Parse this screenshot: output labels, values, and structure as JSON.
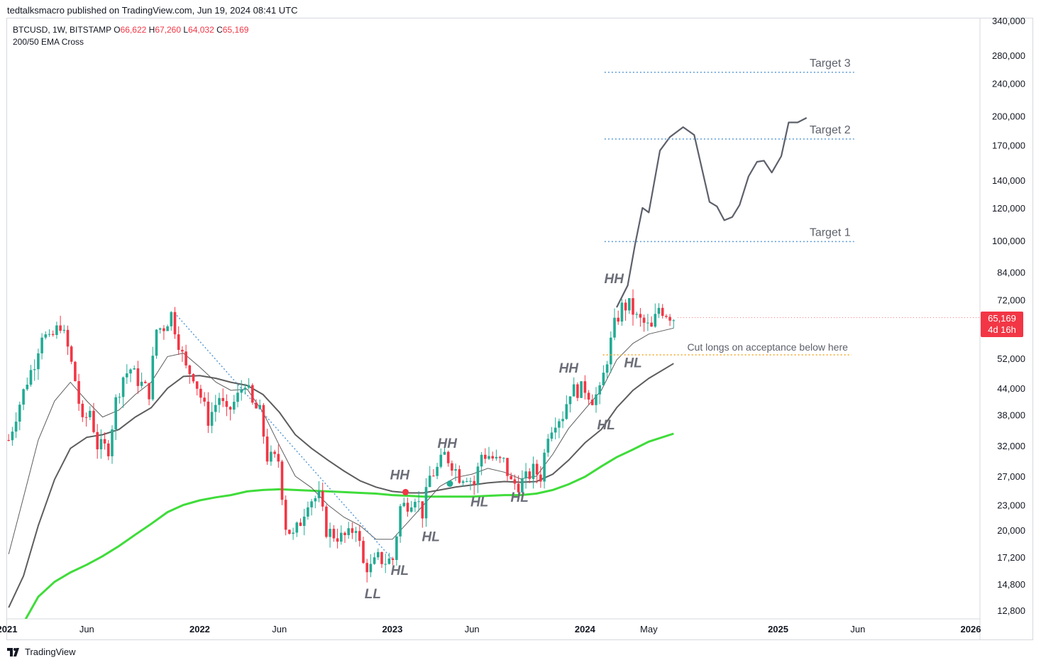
{
  "header": {
    "published": "tedtalksmacro published on TradingView.com, Jun 19, 2024 08:41 UTC"
  },
  "legend": {
    "symbol": "BTCUSD, 1W, BITSTAMP",
    "open_label": "O",
    "open": "66,622",
    "high_label": "H",
    "high": "67,260",
    "low_label": "L",
    "low": "64,032",
    "close_label": "C",
    "close": "65,169",
    "indicator": "200/50 EMA Cross"
  },
  "price_tag": {
    "price": "65,169",
    "countdown": "4d 16h"
  },
  "footer": {
    "brand": "TradingView"
  },
  "colors": {
    "up": "#22ab94",
    "down": "#f23645",
    "ema200": "#3fdc3a",
    "ema": "#5d5d5d",
    "target_line": "#5b9bd5",
    "cut_line": "#f5a623",
    "annotation": "#6b6e78",
    "projection": "#5d606b"
  },
  "chart_data": {
    "type": "candlestick",
    "y_scale": "log",
    "ylim": [
      11800,
      365000
    ],
    "y_ticks": [
      12800,
      14800,
      17200,
      20000,
      23000,
      27000,
      32000,
      38000,
      44000,
      52000,
      72000,
      84000,
      100000,
      120000,
      140000,
      170000,
      200000,
      240000,
      280000,
      340000
    ],
    "y_tick_labels": [
      "12,800",
      "14,800",
      "17,200",
      "20,000",
      "23,000",
      "27,000",
      "32,000",
      "38,000",
      "44,000",
      "52,000",
      "72,000",
      "84,000",
      "100,000",
      "120,000",
      "140,000",
      "170,000",
      "200,000",
      "240,000",
      "280,000",
      "340,000"
    ],
    "x_ticks": [
      {
        "date": "2021-01-01",
        "label": "2021",
        "bold": true
      },
      {
        "date": "2021-06-01",
        "label": "Jun",
        "bold": false
      },
      {
        "date": "2022-01-01",
        "label": "2022",
        "bold": true
      },
      {
        "date": "2022-06-01",
        "label": "Jun",
        "bold": false
      },
      {
        "date": "2023-01-01",
        "label": "2023",
        "bold": true
      },
      {
        "date": "2023-06-01",
        "label": "Jun",
        "bold": false
      },
      {
        "date": "2024-01-01",
        "label": "2024",
        "bold": true
      },
      {
        "date": "2024-05-01",
        "label": "May",
        "bold": false
      },
      {
        "date": "2025-01-01",
        "label": "2025",
        "bold": true
      },
      {
        "date": "2025-06-01",
        "label": "Jun",
        "bold": false
      },
      {
        "date": "2026-01-01",
        "label": "2026",
        "bold": true
      }
    ],
    "close_path": [
      [
        "2021-01-04",
        33000
      ],
      [
        "2021-01-18",
        38000
      ],
      [
        "2021-02-08",
        46000
      ],
      [
        "2021-02-22",
        51000
      ],
      [
        "2021-03-08",
        60000
      ],
      [
        "2021-03-22",
        57000
      ],
      [
        "2021-04-12",
        63000
      ],
      [
        "2021-04-26",
        55000
      ],
      [
        "2021-05-10",
        46000
      ],
      [
        "2021-05-24",
        36000
      ],
      [
        "2021-06-07",
        39000
      ],
      [
        "2021-06-21",
        32000
      ],
      [
        "2021-07-12",
        31500
      ],
      [
        "2021-07-26",
        41000
      ],
      [
        "2021-08-09",
        47000
      ],
      [
        "2021-08-23",
        49000
      ],
      [
        "2021-09-06",
        46000
      ],
      [
        "2021-09-27",
        43000
      ],
      [
        "2021-10-11",
        61000
      ],
      [
        "2021-10-25",
        62000
      ],
      [
        "2021-11-08",
        66500
      ],
      [
        "2021-11-22",
        57000
      ],
      [
        "2021-12-06",
        49000
      ],
      [
        "2021-12-20",
        47500
      ],
      [
        "2022-01-03",
        42000
      ],
      [
        "2022-01-17",
        37000
      ],
      [
        "2022-02-07",
        42000
      ],
      [
        "2022-02-21",
        38000
      ],
      [
        "2022-03-14",
        42000
      ],
      [
        "2022-03-28",
        46000
      ],
      [
        "2022-04-11",
        40000
      ],
      [
        "2022-04-25",
        38500
      ],
      [
        "2022-05-09",
        30000
      ],
      [
        "2022-05-30",
        29500
      ],
      [
        "2022-06-13",
        20500
      ],
      [
        "2022-06-27",
        19300
      ],
      [
        "2022-07-11",
        21000
      ],
      [
        "2022-07-25",
        23700
      ],
      [
        "2022-08-15",
        24000
      ],
      [
        "2022-08-29",
        20000
      ],
      [
        "2022-09-12",
        19500
      ],
      [
        "2022-09-26",
        19200
      ],
      [
        "2022-10-10",
        19400
      ],
      [
        "2022-10-24",
        20600
      ],
      [
        "2022-11-07",
        16500
      ],
      [
        "2022-11-21",
        16200
      ],
      [
        "2022-12-05",
        17100
      ],
      [
        "2022-12-19",
        16800
      ],
      [
        "2023-01-02",
        17000
      ],
      [
        "2023-01-16",
        22700
      ],
      [
        "2023-01-30",
        23200
      ],
      [
        "2023-02-13",
        24300
      ],
      [
        "2023-02-27",
        22000
      ],
      [
        "2023-03-13",
        26900
      ],
      [
        "2023-03-27",
        28100
      ],
      [
        "2023-04-10",
        30400
      ],
      [
        "2023-04-24",
        29000
      ],
      [
        "2023-05-08",
        27000
      ],
      [
        "2023-05-22",
        27200
      ],
      [
        "2023-06-05",
        25800
      ],
      [
        "2023-06-19",
        30500
      ],
      [
        "2023-07-03",
        30300
      ],
      [
        "2023-07-17",
        29300
      ],
      [
        "2023-07-31",
        29200
      ],
      [
        "2023-08-14",
        26000
      ],
      [
        "2023-08-28",
        25800
      ],
      [
        "2023-09-11",
        26600
      ],
      [
        "2023-09-25",
        27900
      ],
      [
        "2023-10-09",
        27000
      ],
      [
        "2023-10-23",
        34500
      ],
      [
        "2023-11-06",
        37000
      ],
      [
        "2023-11-20",
        38000
      ],
      [
        "2023-12-04",
        43500
      ],
      [
        "2023-12-18",
        43600
      ],
      [
        "2024-01-01",
        44000
      ],
      [
        "2024-01-15",
        41600
      ],
      [
        "2024-01-29",
        43000
      ],
      [
        "2024-02-12",
        52000
      ],
      [
        "2024-02-26",
        62500
      ],
      [
        "2024-03-11",
        69000
      ],
      [
        "2024-03-25",
        69800
      ],
      [
        "2024-04-08",
        65000
      ],
      [
        "2024-04-22",
        63000
      ],
      [
        "2024-05-06",
        61000
      ],
      [
        "2024-05-20",
        69000
      ],
      [
        "2024-06-03",
        67000
      ],
      [
        "2024-06-17",
        65169
      ]
    ],
    "ema50_path": [
      [
        "2021-01-04",
        13000
      ],
      [
        "2021-02-01",
        15500
      ],
      [
        "2021-03-01",
        20500
      ],
      [
        "2021-04-01",
        26500
      ],
      [
        "2021-05-01",
        31500
      ],
      [
        "2021-06-01",
        33500
      ],
      [
        "2021-07-01",
        34000
      ],
      [
        "2021-08-01",
        35000
      ],
      [
        "2021-09-01",
        37500
      ],
      [
        "2021-10-01",
        39500
      ],
      [
        "2021-11-01",
        44000
      ],
      [
        "2021-12-01",
        47000
      ],
      [
        "2022-01-01",
        47200
      ],
      [
        "2022-02-01",
        46500
      ],
      [
        "2022-03-01",
        45500
      ],
      [
        "2022-04-01",
        44700
      ],
      [
        "2022-05-01",
        42500
      ],
      [
        "2022-06-01",
        38500
      ],
      [
        "2022-07-01",
        34000
      ],
      [
        "2022-08-01",
        31500
      ],
      [
        "2022-09-01",
        29500
      ],
      [
        "2022-10-01",
        27800
      ],
      [
        "2022-11-01",
        26300
      ],
      [
        "2022-12-01",
        25400
      ],
      [
        "2023-01-01",
        24800
      ],
      [
        "2023-02-01",
        24600
      ],
      [
        "2023-03-01",
        24600
      ],
      [
        "2023-04-01",
        25000
      ],
      [
        "2023-05-01",
        25400
      ],
      [
        "2023-06-01",
        25700
      ],
      [
        "2023-07-01",
        26000
      ],
      [
        "2023-08-01",
        26200
      ],
      [
        "2023-09-01",
        26100
      ],
      [
        "2023-10-01",
        26200
      ],
      [
        "2023-11-01",
        27300
      ],
      [
        "2023-12-01",
        29500
      ],
      [
        "2024-01-01",
        32500
      ],
      [
        "2024-02-01",
        35000
      ],
      [
        "2024-03-01",
        39500
      ],
      [
        "2024-04-01",
        43500
      ],
      [
        "2024-05-01",
        46500
      ],
      [
        "2024-06-17",
        50500
      ]
    ],
    "ema21_path": [
      [
        "2021-01-04",
        17500
      ],
      [
        "2021-02-01",
        24000
      ],
      [
        "2021-03-01",
        33000
      ],
      [
        "2021-04-01",
        41000
      ],
      [
        "2021-05-01",
        45500
      ],
      [
        "2021-06-01",
        41000
      ],
      [
        "2021-07-01",
        37500
      ],
      [
        "2021-08-01",
        39000
      ],
      [
        "2021-09-01",
        42500
      ],
      [
        "2021-10-01",
        45500
      ],
      [
        "2021-11-01",
        52500
      ],
      [
        "2021-12-01",
        53500
      ],
      [
        "2022-01-01",
        49500
      ],
      [
        "2022-02-01",
        45500
      ],
      [
        "2022-03-01",
        43500
      ],
      [
        "2022-04-01",
        43800
      ],
      [
        "2022-05-01",
        38500
      ],
      [
        "2022-06-01",
        32000
      ],
      [
        "2022-07-01",
        27000
      ],
      [
        "2022-08-01",
        25300
      ],
      [
        "2022-09-01",
        23000
      ],
      [
        "2022-10-01",
        21500
      ],
      [
        "2022-11-01",
        20500
      ],
      [
        "2022-12-01",
        19000
      ],
      [
        "2023-01-01",
        19000
      ],
      [
        "2023-02-01",
        21000
      ],
      [
        "2023-03-01",
        23000
      ],
      [
        "2023-04-01",
        25500
      ],
      [
        "2023-05-01",
        26800
      ],
      [
        "2023-06-01",
        27300
      ],
      [
        "2023-07-01",
        28200
      ],
      [
        "2023-08-01",
        27600
      ],
      [
        "2023-09-01",
        26600
      ],
      [
        "2023-10-01",
        27000
      ],
      [
        "2023-11-01",
        30500
      ],
      [
        "2023-12-01",
        35200
      ],
      [
        "2024-01-01",
        39200
      ],
      [
        "2024-02-01",
        43500
      ],
      [
        "2024-03-01",
        51500
      ],
      [
        "2024-04-01",
        56500
      ],
      [
        "2024-05-01",
        59500
      ],
      [
        "2024-06-17",
        61500
      ]
    ],
    "ema200_path": [
      [
        "2021-01-25",
        11500
      ],
      [
        "2021-03-01",
        13800
      ],
      [
        "2021-04-01",
        15000
      ],
      [
        "2021-05-01",
        15800
      ],
      [
        "2021-06-01",
        16500
      ],
      [
        "2021-07-01",
        17300
      ],
      [
        "2021-08-01",
        18300
      ],
      [
        "2021-09-01",
        19500
      ],
      [
        "2021-10-01",
        20700
      ],
      [
        "2021-11-01",
        22100
      ],
      [
        "2021-12-01",
        23000
      ],
      [
        "2022-01-01",
        23600
      ],
      [
        "2022-02-01",
        24000
      ],
      [
        "2022-03-01",
        24300
      ],
      [
        "2022-04-01",
        24800
      ],
      [
        "2022-05-01",
        25000
      ],
      [
        "2022-06-01",
        25100
      ],
      [
        "2022-07-01",
        25000
      ],
      [
        "2022-08-01",
        24900
      ],
      [
        "2022-09-01",
        24800
      ],
      [
        "2022-10-01",
        24700
      ],
      [
        "2022-11-01",
        24600
      ],
      [
        "2022-12-01",
        24500
      ],
      [
        "2023-01-01",
        24300
      ],
      [
        "2023-02-01",
        24200
      ],
      [
        "2023-03-01",
        24100
      ],
      [
        "2023-04-01",
        24100
      ],
      [
        "2023-05-01",
        24100
      ],
      [
        "2023-06-01",
        24100
      ],
      [
        "2023-07-01",
        24200
      ],
      [
        "2023-08-01",
        24300
      ],
      [
        "2023-09-01",
        24300
      ],
      [
        "2023-10-01",
        24500
      ],
      [
        "2023-11-01",
        25000
      ],
      [
        "2023-12-01",
        25800
      ],
      [
        "2024-01-01",
        26900
      ],
      [
        "2024-02-01",
        28500
      ],
      [
        "2024-03-01",
        30000
      ],
      [
        "2024-04-01",
        31300
      ],
      [
        "2024-05-01",
        32700
      ],
      [
        "2024-06-17",
        34200
      ]
    ],
    "projection_path": [
      [
        "2024-03-01",
        69000
      ],
      [
        "2024-03-22",
        78000
      ],
      [
        "2024-04-05",
        98000
      ],
      [
        "2024-04-19",
        120000
      ],
      [
        "2024-05-01",
        117000
      ],
      [
        "2024-05-22",
        165000
      ],
      [
        "2024-06-10",
        178000
      ],
      [
        "2024-07-05",
        188000
      ],
      [
        "2024-07-26",
        180000
      ],
      [
        "2024-08-24",
        124000
      ],
      [
        "2024-09-07",
        121000
      ],
      [
        "2024-09-21",
        112000
      ],
      [
        "2024-10-06",
        114000
      ],
      [
        "2024-10-20",
        122000
      ],
      [
        "2024-11-06",
        143000
      ],
      [
        "2024-11-22",
        155000
      ],
      [
        "2024-12-05",
        156000
      ],
      [
        "2024-12-20",
        146000
      ],
      [
        "2025-01-07",
        160000
      ],
      [
        "2025-01-21",
        193000
      ],
      [
        "2025-02-07",
        193000
      ],
      [
        "2025-02-24",
        198000
      ]
    ],
    "trendline": {
      "from": [
        "2021-11-14",
        67000
      ],
      "to": [
        "2023-01-01",
        17000
      ]
    },
    "horizontal_levels": [
      {
        "name": "Target 3",
        "value": 255000,
        "start": "2024-02-07",
        "end": "2025-05-25",
        "kind": "target"
      },
      {
        "name": "Target 2",
        "value": 176000,
        "start": "2024-02-07",
        "end": "2025-05-25",
        "kind": "target"
      },
      {
        "name": "Target 1",
        "value": 99500,
        "start": "2024-02-07",
        "end": "2025-05-25",
        "kind": "target"
      },
      {
        "name": "Cut longs on acceptance below here",
        "value": 53000,
        "start": "2024-02-04",
        "end": "2025-05-20",
        "kind": "stop"
      }
    ],
    "annotations": [
      {
        "text": "LL",
        "date": "2022-11-25",
        "price": 13700
      },
      {
        "text": "HL",
        "date": "2023-01-15",
        "price": 15600
      },
      {
        "text": "HH",
        "date": "2023-01-15",
        "price": 26500
      },
      {
        "text": "HL",
        "date": "2023-03-15",
        "price": 18800
      },
      {
        "text": "HH",
        "date": "2023-04-15",
        "price": 31600
      },
      {
        "text": "HL",
        "date": "2023-06-15",
        "price": 22800
      },
      {
        "text": "HL",
        "date": "2023-08-30",
        "price": 23400
      },
      {
        "text": "HH",
        "date": "2023-12-01",
        "price": 48000
      },
      {
        "text": "HL",
        "date": "2024-02-10",
        "price": 35000
      },
      {
        "text": "HH",
        "date": "2024-02-25",
        "price": 79000
      },
      {
        "text": "HL",
        "date": "2024-04-01",
        "price": 49500
      }
    ],
    "cross_markers": [
      {
        "date": "2023-01-26",
        "price": 24700,
        "color": "#f23645"
      },
      {
        "date": "2023-04-20",
        "price": 25900,
        "color": "#22ab94"
      }
    ]
  }
}
